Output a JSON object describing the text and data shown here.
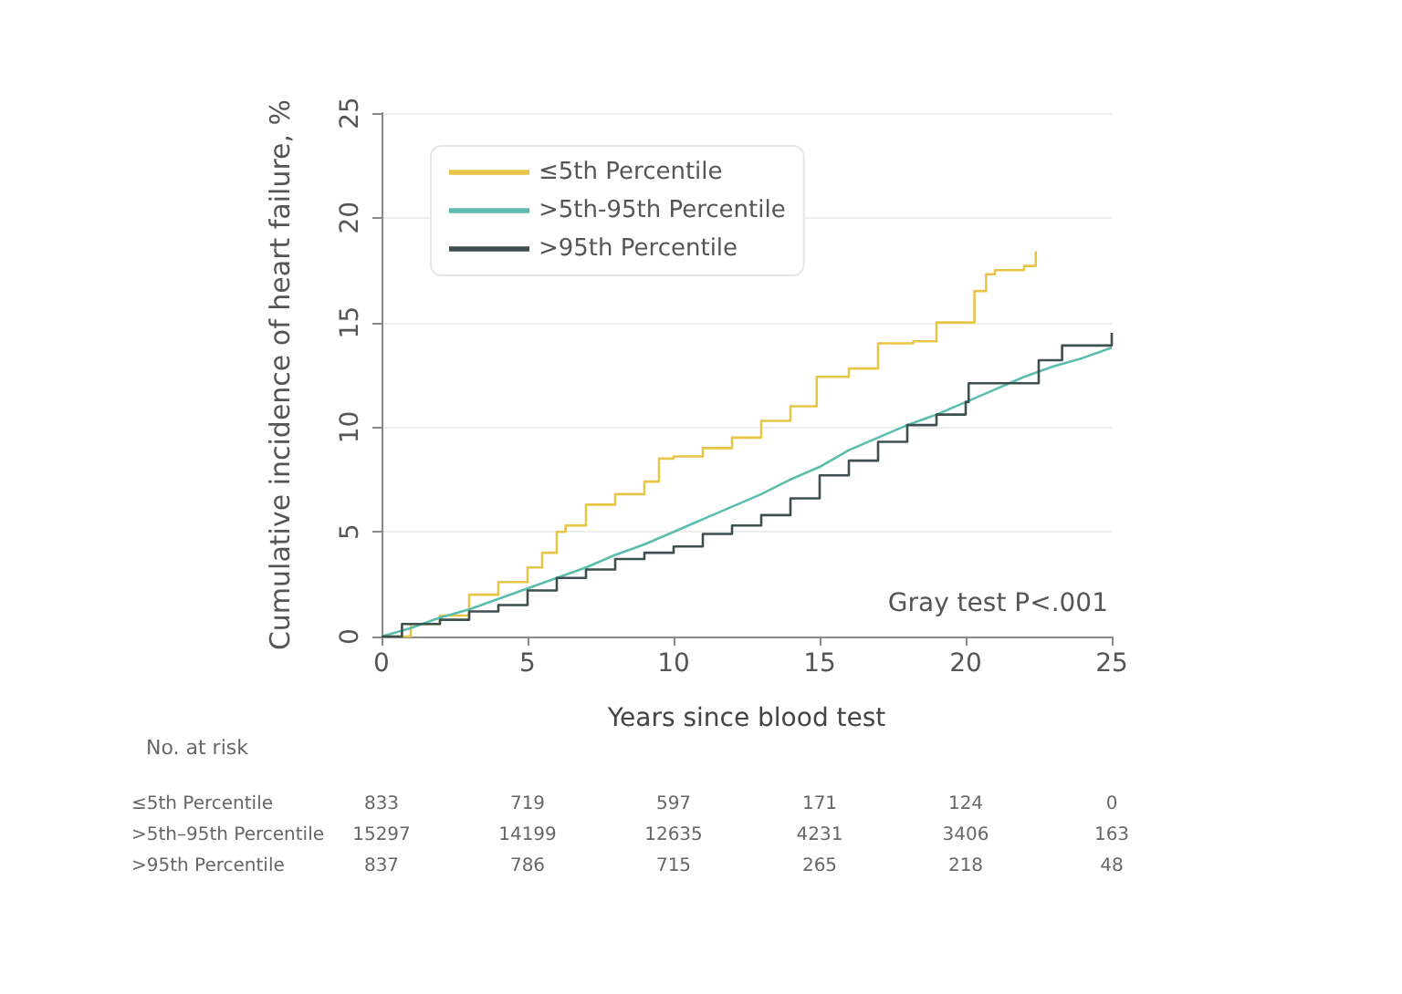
{
  "chart_data": {
    "type": "step",
    "xlabel": "Years since blood test",
    "ylabel": "Cumulative incidence of heart failure, %",
    "xlim": [
      0,
      25
    ],
    "xticks": [
      0,
      5,
      10,
      15,
      20,
      25
    ],
    "ylim": [
      0,
      25
    ],
    "yticks": [
      0,
      5,
      10,
      15,
      20,
      25
    ],
    "grid": "y",
    "legend": "top left",
    "line_style": "solid",
    "marker": "none",
    "series": [
      {
        "name": "≤5th Percentile",
        "color": "#e8c547",
        "x": [
          0,
          1,
          2,
          3,
          4,
          5,
          5.5,
          6,
          6.3,
          7,
          8,
          9,
          9.5,
          10,
          11,
          12,
          13,
          14,
          14.9,
          16,
          17,
          18.2,
          19,
          20.3,
          20.7,
          21,
          22,
          22.4
        ],
        "values": [
          0,
          0.6,
          1.0,
          2.0,
          2.6,
          3.3,
          4.0,
          5.0,
          5.3,
          6.3,
          6.8,
          7.4,
          8.5,
          8.6,
          9.0,
          9.5,
          10.3,
          11.0,
          12.4,
          12.8,
          14.0,
          14.1,
          15.0,
          16.5,
          17.3,
          17.5,
          17.7,
          18.4
        ]
      },
      {
        "name": ">5th-95th Percentile",
        "type": "line",
        "color": "#5bbcb0",
        "x": [
          0,
          1,
          2,
          3,
          4,
          5,
          6,
          7,
          8,
          9,
          10,
          11,
          12,
          13,
          14,
          15,
          16,
          17,
          18,
          19,
          20,
          21,
          22,
          23,
          24,
          25
        ],
        "values": [
          0,
          0.4,
          0.9,
          1.3,
          1.8,
          2.3,
          2.8,
          3.3,
          3.9,
          4.4,
          5.0,
          5.6,
          6.2,
          6.8,
          7.5,
          8.1,
          8.9,
          9.5,
          10.1,
          10.6,
          11.2,
          11.8,
          12.4,
          12.9,
          13.3,
          13.8
        ]
      },
      {
        "name": ">95th Percentile",
        "color": "#3d4f4f",
        "x": [
          0,
          0.7,
          2,
          3,
          4,
          5,
          6,
          7,
          8,
          9,
          10,
          11,
          12,
          13,
          14,
          15,
          16,
          17,
          18,
          19,
          20,
          20.1,
          21.9,
          22.5,
          23.3,
          25,
          25
        ],
        "values": [
          0,
          0.6,
          0.8,
          1.2,
          1.5,
          2.2,
          2.8,
          3.2,
          3.7,
          4.0,
          4.3,
          4.9,
          5.3,
          5.8,
          6.6,
          7.7,
          8.4,
          9.3,
          10.1,
          10.6,
          11.2,
          12.1,
          12.1,
          13.2,
          13.9,
          13.9,
          14.5
        ]
      }
    ],
    "annotations": [
      "No. at risk",
      "≤5th Percentile",
      "833",
      "719",
      "597",
      "171",
      "124",
      "0",
      ">5th–95th Percentile",
      "15297",
      "14199",
      "12635",
      "4231",
      "3406",
      "163",
      ">95th Percentile",
      "837",
      "786",
      "715",
      "265",
      "218",
      "48",
      "Gray test P<.001"
    ]
  }
}
